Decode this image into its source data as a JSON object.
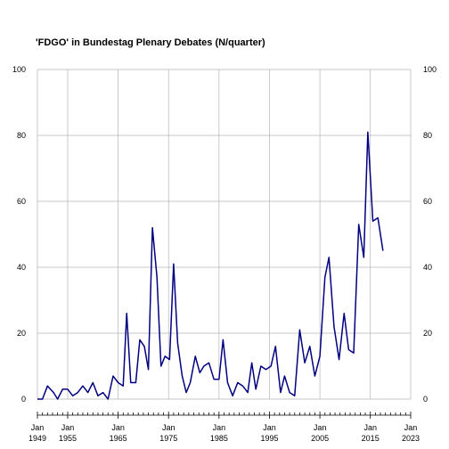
{
  "chart_data": {
    "type": "line",
    "title": "'FDGO' in Bundestag Plenary Debates (N/quarter)",
    "xlabel": "",
    "ylabel": "",
    "xlim": [
      1949,
      2023
    ],
    "ylim": [
      0,
      100
    ],
    "grid": true,
    "y_axis_both_sides": true,
    "y_ticks": [
      0,
      20,
      40,
      60,
      80,
      100
    ],
    "x_ticks": [
      {
        "value": 1949,
        "month": "Jan",
        "year": "1949"
      },
      {
        "value": 1955,
        "month": "Jan",
        "year": "1955"
      },
      {
        "value": 1965,
        "month": "Jan",
        "year": "1965"
      },
      {
        "value": 1975,
        "month": "Jan",
        "year": "1975"
      },
      {
        "value": 1985,
        "month": "Jan",
        "year": "1985"
      },
      {
        "value": 1995,
        "month": "Jan",
        "year": "1995"
      },
      {
        "value": 2005,
        "month": "Jan",
        "year": "2005"
      },
      {
        "value": 2015,
        "month": "Jan",
        "year": "2015"
      },
      {
        "value": 2023,
        "month": "Jan",
        "year": "2023"
      }
    ],
    "minor_x_ticks": [
      1950,
      1951,
      1952,
      1953,
      1954,
      1956,
      1957,
      1958,
      1959,
      1960,
      1961,
      1962,
      1963,
      1964,
      1966,
      1967,
      1968,
      1969,
      1970,
      1971,
      1972,
      1973,
      1974,
      1976,
      1977,
      1978,
      1979,
      1980,
      1981,
      1982,
      1983,
      1984,
      1986,
      1987,
      1988,
      1989,
      1990,
      1991,
      1992,
      1993,
      1994,
      1996,
      1997,
      1998,
      1999,
      2000,
      2001,
      2002,
      2003,
      2004,
      2006,
      2007,
      2008,
      2009,
      2010,
      2011,
      2012,
      2013,
      2014,
      2016,
      2017,
      2018,
      2019,
      2020,
      2021,
      2022
    ],
    "series": [
      {
        "name": "",
        "color": "#000080",
        "points": [
          [
            1949.0,
            0
          ],
          [
            1950.0,
            0
          ],
          [
            1951.0,
            4
          ],
          [
            1952.2,
            2
          ],
          [
            1953.0,
            0
          ],
          [
            1954.0,
            3
          ],
          [
            1955.0,
            3
          ],
          [
            1956.0,
            1
          ],
          [
            1957.0,
            2
          ],
          [
            1958.0,
            4
          ],
          [
            1959.0,
            2
          ],
          [
            1960.0,
            5
          ],
          [
            1961.0,
            1
          ],
          [
            1962.0,
            2
          ],
          [
            1963.0,
            0
          ],
          [
            1964.0,
            7
          ],
          [
            1965.0,
            5
          ],
          [
            1966.0,
            4
          ],
          [
            1966.7,
            26
          ],
          [
            1967.5,
            5
          ],
          [
            1968.5,
            5
          ],
          [
            1969.3,
            18
          ],
          [
            1970.2,
            16
          ],
          [
            1971.0,
            9
          ],
          [
            1971.8,
            52
          ],
          [
            1972.7,
            37
          ],
          [
            1973.5,
            10
          ],
          [
            1974.3,
            13
          ],
          [
            1975.2,
            12
          ],
          [
            1976.0,
            41
          ],
          [
            1976.8,
            17
          ],
          [
            1977.7,
            7
          ],
          [
            1978.5,
            2
          ],
          [
            1979.3,
            5
          ],
          [
            1980.3,
            13
          ],
          [
            1981.2,
            8
          ],
          [
            1982.0,
            10
          ],
          [
            1983.0,
            11
          ],
          [
            1984.0,
            6
          ],
          [
            1985.0,
            6
          ],
          [
            1985.8,
            18
          ],
          [
            1986.7,
            5
          ],
          [
            1987.7,
            1
          ],
          [
            1988.7,
            5
          ],
          [
            1989.7,
            4
          ],
          [
            1990.7,
            2
          ],
          [
            1991.5,
            11
          ],
          [
            1992.3,
            3
          ],
          [
            1993.3,
            10
          ],
          [
            1994.3,
            9
          ],
          [
            1995.3,
            10
          ],
          [
            1996.2,
            16
          ],
          [
            1997.2,
            2
          ],
          [
            1998.0,
            7
          ],
          [
            1999.0,
            2
          ],
          [
            2000.0,
            1
          ],
          [
            2001.0,
            21
          ],
          [
            2002.0,
            11
          ],
          [
            2003.0,
            16
          ],
          [
            2004.0,
            7
          ],
          [
            2005.0,
            13
          ],
          [
            2006.0,
            37
          ],
          [
            2006.8,
            43
          ],
          [
            2007.8,
            22
          ],
          [
            2008.8,
            12
          ],
          [
            2009.8,
            26
          ],
          [
            2010.7,
            15
          ],
          [
            2011.7,
            14
          ],
          [
            2012.7,
            53
          ],
          [
            2013.7,
            43
          ],
          [
            2014.5,
            81
          ],
          [
            2015.5,
            54
          ],
          [
            2016.5,
            55
          ],
          [
            2017.5,
            45
          ]
        ]
      }
    ]
  }
}
